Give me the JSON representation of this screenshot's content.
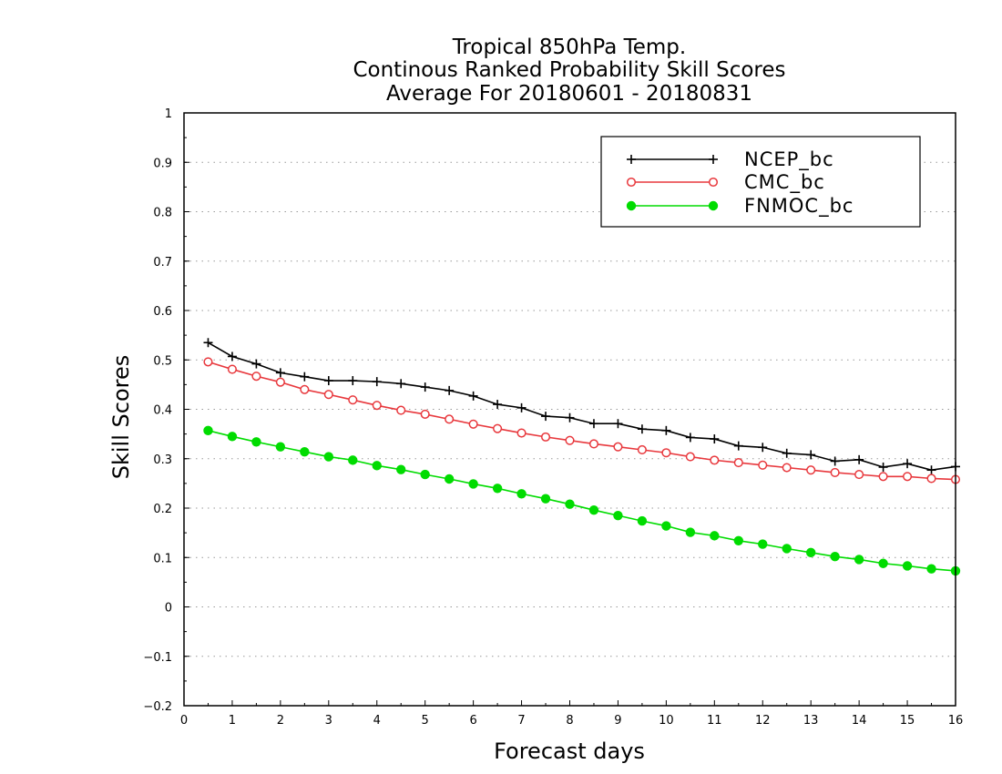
{
  "chart_data": {
    "type": "line",
    "title_lines": [
      "Tropical 850hPa Temp.",
      "Continous Ranked Probability Skill Scores",
      "Average For 20180601 - 20180831"
    ],
    "xlabel": "Forecast days",
    "ylabel": "Skill Scores",
    "xlim": [
      0,
      16
    ],
    "ylim": [
      -0.2,
      1
    ],
    "xticks": [
      "0",
      "1",
      "2",
      "3",
      "4",
      "5",
      "6",
      "7",
      "8",
      "9",
      "10",
      "11",
      "12",
      "13",
      "14",
      "15",
      "16"
    ],
    "yticks": [
      "−0.2",
      "−0.1",
      "0",
      "0.1",
      "0.2",
      "0.3",
      "0.4",
      "0.5",
      "0.6",
      "0.7",
      "0.8",
      "0.9",
      "1"
    ],
    "ytick_values": [
      -0.2,
      -0.1,
      0,
      0.1,
      0.2,
      0.3,
      0.4,
      0.5,
      0.6,
      0.7,
      0.8,
      0.9,
      1
    ],
    "grid": "horizontal dotted",
    "legend_position": "top-right",
    "x": [
      0.5,
      1,
      1.5,
      2,
      2.5,
      3,
      3.5,
      4,
      4.5,
      5,
      5.5,
      6,
      6.5,
      7,
      7.5,
      8,
      8.5,
      9,
      9.5,
      10,
      10.5,
      11,
      11.5,
      12,
      12.5,
      13,
      13.5,
      14,
      14.5,
      15,
      15.5,
      16
    ],
    "series": [
      {
        "name": "NCEP_bc",
        "color": "#000000",
        "marker": "plus",
        "values": [
          0.535,
          0.507,
          0.492,
          0.474,
          0.466,
          0.458,
          0.458,
          0.456,
          0.452,
          0.445,
          0.438,
          0.427,
          0.41,
          0.403,
          0.386,
          0.383,
          0.371,
          0.371,
          0.36,
          0.357,
          0.343,
          0.34,
          0.326,
          0.323,
          0.311,
          0.308,
          0.295,
          0.298,
          0.283,
          0.29,
          0.277,
          0.284
        ]
      },
      {
        "name": "CMC_bc",
        "color": "#e8383d",
        "marker": "open-circle",
        "values": [
          0.496,
          0.481,
          0.467,
          0.455,
          0.44,
          0.43,
          0.419,
          0.408,
          0.398,
          0.39,
          0.38,
          0.37,
          0.361,
          0.352,
          0.344,
          0.337,
          0.33,
          0.324,
          0.318,
          0.312,
          0.304,
          0.297,
          0.292,
          0.287,
          0.282,
          0.277,
          0.272,
          0.268,
          0.264,
          0.264,
          0.26,
          0.258
        ]
      },
      {
        "name": "FNMOC_bc",
        "color": "#00dc00",
        "marker": "filled-circle",
        "values": [
          0.357,
          0.345,
          0.334,
          0.324,
          0.314,
          0.304,
          0.297,
          0.286,
          0.278,
          0.268,
          0.259,
          0.249,
          0.24,
          0.229,
          0.219,
          0.208,
          0.196,
          0.185,
          0.174,
          0.164,
          0.151,
          0.144,
          0.134,
          0.127,
          0.118,
          0.11,
          0.102,
          0.096,
          0.088,
          0.083,
          0.077,
          0.073
        ]
      }
    ]
  }
}
